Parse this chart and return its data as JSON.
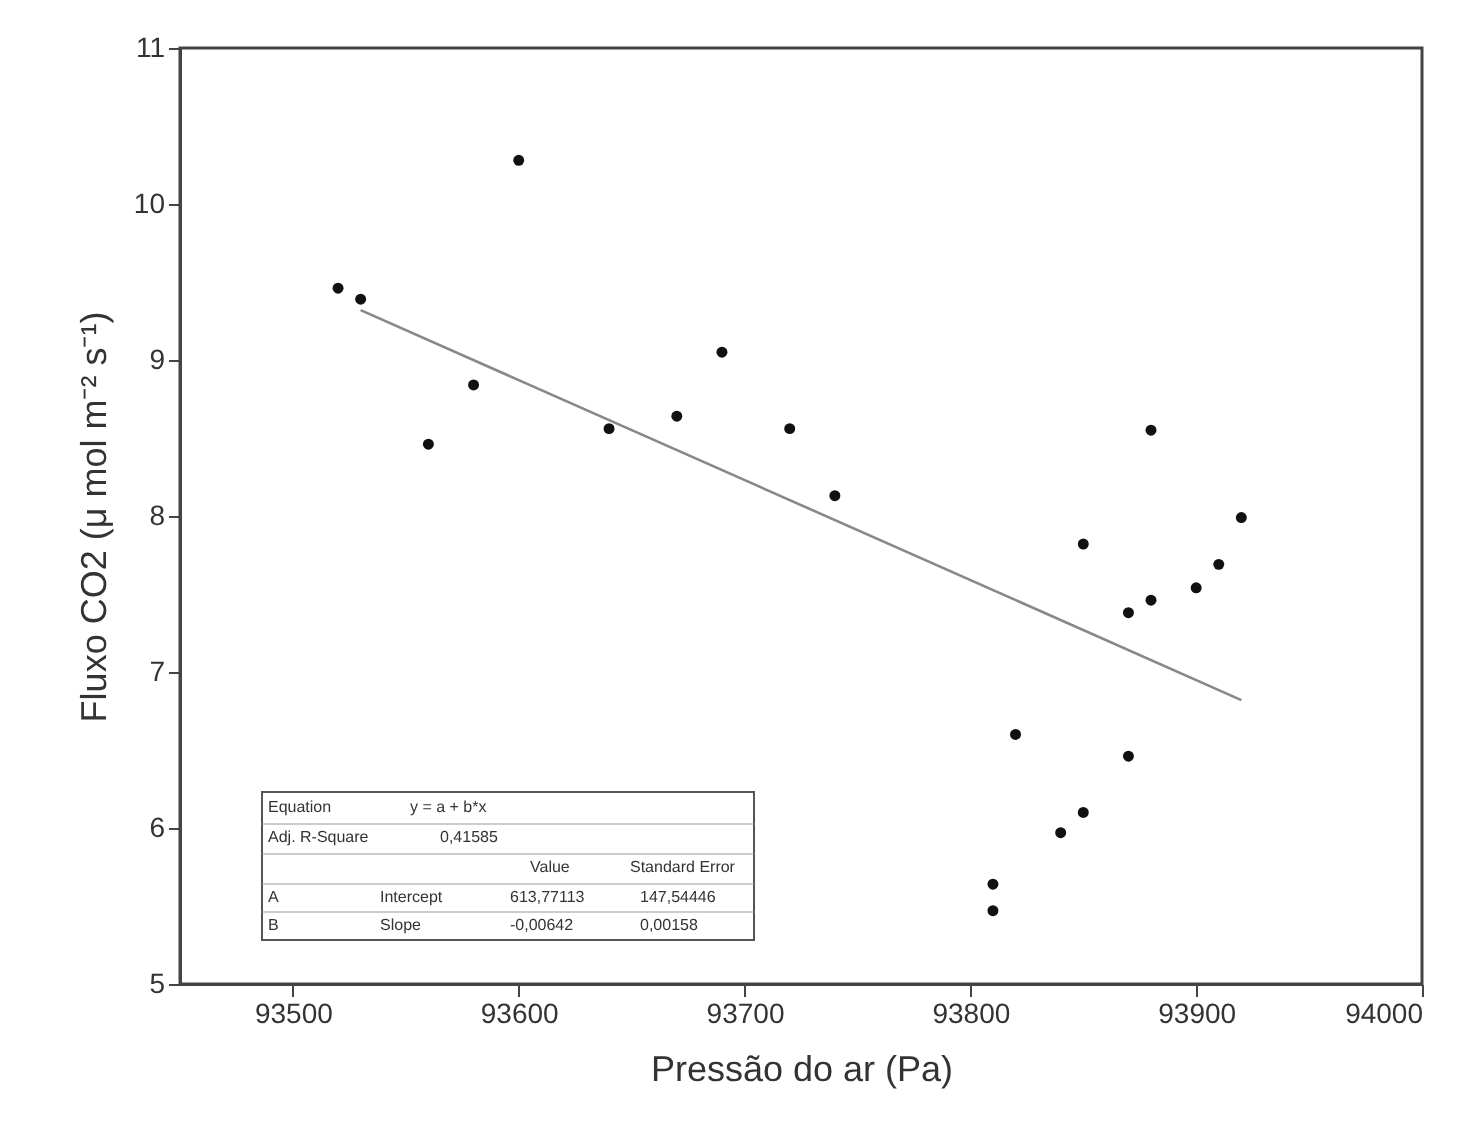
{
  "chart_data": {
    "type": "scatter",
    "xlabel": "Pressão do ar (Pa)",
    "ylabel": "Fluxo CO2 (μ mol m⁻² s⁻¹)",
    "xlim": [
      93450,
      94000
    ],
    "xticks": [
      93500,
      93600,
      93700,
      93800,
      93900,
      94000
    ],
    "ylim": [
      5,
      11
    ],
    "yticks": [
      5,
      6,
      7,
      8,
      9,
      10,
      11
    ],
    "grid": false,
    "legend": false,
    "series": [
      {
        "marker": "circle",
        "color": "#111111",
        "x": [
          93520,
          93530,
          93560,
          93580,
          93600,
          93640,
          93670,
          93690,
          93720,
          93740,
          93880,
          93850,
          93920,
          93910,
          93900,
          93880,
          93870,
          93820,
          93870,
          93850,
          93840,
          93810,
          93810
        ],
        "values": [
          9.46,
          9.39,
          8.46,
          8.84,
          10.28,
          8.56,
          8.64,
          9.05,
          8.56,
          8.13,
          8.55,
          7.82,
          7.99,
          7.69,
          7.54,
          7.46,
          7.38,
          6.6,
          6.46,
          6.1,
          5.97,
          5.64,
          5.47
        ]
      },
      {
        "type": "line",
        "color": "#888888",
        "line_style": "solid",
        "x": [
          93530,
          93920
        ],
        "values": [
          9.32,
          6.82
        ]
      }
    ],
    "annotations": [
      "Equation",
      "y = a + b*x",
      "Adj. R-Square",
      "0,41585",
      "Value",
      "Standard Error",
      "A",
      "Intercept",
      "613,77113",
      "147,54446",
      "B",
      "Slope",
      "-0,00642",
      "0,00158"
    ]
  }
}
